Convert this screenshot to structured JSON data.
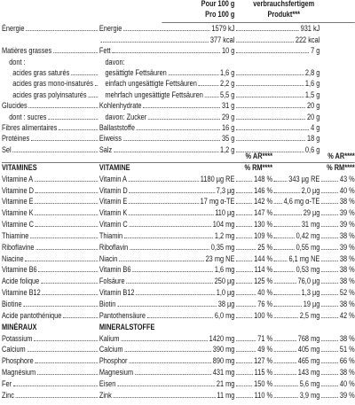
{
  "header": {
    "per100": [
      "Pour 100 g",
      "Pro 100 g"
    ],
    "ready": [
      "verbrauchsfertigem",
      "Produkt***"
    ]
  },
  "macros": [
    [
      "Énergie",
      "Energie",
      "1579 kJ",
      "931 kJ"
    ],
    [
      null,
      null,
      "377 kcal",
      "222 kcal"
    ],
    [
      "Matières grasses",
      "Fett",
      "10 g",
      "7 g"
    ],
    [
      "dont :",
      "davon:",
      null,
      null
    ],
    [
      "acides gras saturés",
      "gesättigte Fettsäuren",
      "1,6 g",
      "2,8 g"
    ],
    [
      "acides gras mono-insaturés",
      "einfach ungesättigte Fettsäuren",
      "2,2 g",
      "1,6 g"
    ],
    [
      "acides gras polyinsaturés",
      "mehrfach ungesättigte Fettsäuren",
      "5,5 g",
      "1,5 g"
    ],
    [
      "Glucides",
      "Kohlenhydrate",
      "31 g",
      "20 g"
    ],
    [
      "dont : sucres",
      "davon: Zucker",
      "29 g",
      "20 g"
    ],
    [
      "Fibres alimentaires",
      "Ballaststoffe",
      "16 g",
      "4 g"
    ],
    [
      "Protéines",
      "Eiweiss",
      "35 g",
      "18 g"
    ],
    [
      "Sel",
      "Salz",
      "1,2 g",
      "0,6 g"
    ]
  ],
  "pct_headers": [
    [
      "% AR****",
      "% RM****"
    ],
    [
      "% AR****",
      "% RM****"
    ]
  ],
  "sections": [
    {
      "fr": "VITAMINES",
      "de": "VITAMINE",
      "rows": [
        [
          "Vitamine A",
          "Vitamin A",
          "1180 µg RE",
          "148 %",
          "343 µg RE",
          "43 %"
        ],
        [
          "Vitamine D",
          "Vitamin D",
          "7,3 µg",
          "146 %",
          "2,0 µg",
          "40 %"
        ],
        [
          "Vitamine E",
          "Vitamin E",
          "17 mg α-TE",
          "142 %",
          "4,6 mg α-TE",
          "38 %"
        ],
        [
          "Vitamine K",
          "Vitamin K",
          "110 µg",
          "147 %",
          "29 µg",
          "39 %"
        ],
        [
          "Vitamine C",
          "Vitamin C",
          "104 mg",
          "130 %",
          "31 mg",
          "39 %"
        ],
        [
          "Thiamine",
          "Thiamin",
          "1,2 mg",
          "109 %",
          "0,42 mg",
          "38 %"
        ],
        [
          "Riboflavine",
          "Riboflavin",
          "0,35 mg",
          "25 %",
          "0,55 mg",
          "39 %"
        ],
        [
          "Niacine",
          "Niacin",
          "23 mg NE",
          "144 %",
          "6,1 mg NE",
          "38 %"
        ],
        [
          "Vitamine B6",
          "Vitamin B6",
          "1,6 mg",
          "114 %",
          "0,53 mg",
          "38 %"
        ],
        [
          "Acide folique",
          "Folsäure",
          "250 µg",
          "125 %",
          "76,0 µg",
          "38 %"
        ],
        [
          "Vitamine B12",
          "Vitamin B12",
          "1,0 µg",
          "40 %",
          "1,3 µg",
          "52 %"
        ],
        [
          "Biotine",
          "Biotin",
          "38 µg",
          "76 %",
          "19 µg",
          "38 %"
        ],
        [
          "Acide pantothénique",
          "Pantothensäure",
          "6,0 mg",
          "100 %",
          "2,5 mg",
          "42 %"
        ]
      ]
    },
    {
      "fr": "MINÉRAUX",
      "de": "MINERALSTOFFE",
      "rows": [
        [
          "Potassium",
          "Kalium",
          "1420 mg",
          "71 %",
          "768 mg",
          "38 %"
        ],
        [
          "Calcium",
          "Calcium",
          "390 mg",
          "49 %",
          "405 mg",
          "51 %"
        ],
        [
          "Phosphore",
          "Phosphor",
          "890 mg",
          "127 %",
          "465 mg",
          "66 %"
        ],
        [
          "Magnésium",
          "Magnesium",
          "431 mg",
          "115 %",
          "143 mg",
          "38 %"
        ],
        [
          "Fer",
          "Eisen",
          "21 mg",
          "150 %",
          "5,6 mg",
          "40 %"
        ],
        [
          "Zinc",
          "Zink",
          "11 mg",
          "110 %",
          "3,9 mg",
          "39 %"
        ]
      ]
    }
  ]
}
